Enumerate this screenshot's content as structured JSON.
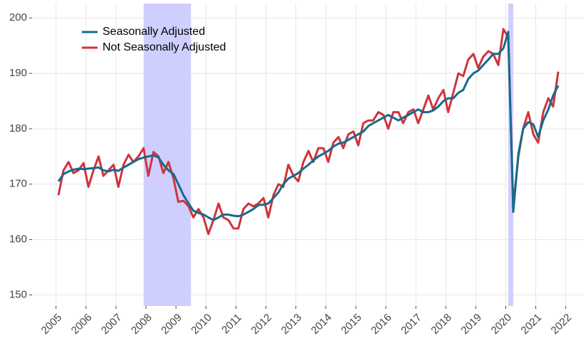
{
  "chart_data": {
    "type": "line",
    "x": [
      2005.08,
      2005.25,
      2005.42,
      2005.58,
      2005.75,
      2005.92,
      2006.08,
      2006.25,
      2006.42,
      2006.58,
      2006.75,
      2006.92,
      2007.08,
      2007.25,
      2007.42,
      2007.58,
      2007.75,
      2007.92,
      2008.08,
      2008.25,
      2008.42,
      2008.58,
      2008.75,
      2008.92,
      2009.08,
      2009.25,
      2009.42,
      2009.58,
      2009.75,
      2009.92,
      2010.08,
      2010.25,
      2010.42,
      2010.58,
      2010.75,
      2010.92,
      2011.08,
      2011.25,
      2011.42,
      2011.58,
      2011.75,
      2011.92,
      2012.08,
      2012.25,
      2012.42,
      2012.58,
      2012.75,
      2012.92,
      2013.08,
      2013.25,
      2013.42,
      2013.58,
      2013.75,
      2013.92,
      2014.08,
      2014.25,
      2014.42,
      2014.58,
      2014.75,
      2014.92,
      2015.08,
      2015.25,
      2015.42,
      2015.58,
      2015.75,
      2015.92,
      2016.08,
      2016.25,
      2016.42,
      2016.58,
      2016.75,
      2016.92,
      2017.08,
      2017.25,
      2017.42,
      2017.58,
      2017.75,
      2017.92,
      2018.08,
      2018.25,
      2018.42,
      2018.58,
      2018.75,
      2018.92,
      2019.08,
      2019.25,
      2019.42,
      2019.58,
      2019.75,
      2019.92,
      2020.08,
      2020.25,
      2020.42,
      2020.58,
      2020.75,
      2020.92,
      2021.08,
      2021.25,
      2021.42,
      2021.58,
      2021.75
    ],
    "series": [
      {
        "name": "Seasonally Adjusted",
        "color": "#156b8e",
        "values": [
          170.5,
          171.8,
          172.3,
          172.6,
          172.8,
          172.7,
          172.8,
          172.9,
          173.0,
          172.5,
          172.3,
          172.6,
          172.4,
          173.0,
          173.5,
          174.0,
          174.5,
          174.8,
          175.0,
          175.2,
          174.8,
          173.5,
          172.5,
          171.8,
          170.0,
          168.0,
          166.5,
          165.2,
          164.8,
          164.5,
          164.0,
          163.5,
          164.0,
          164.5,
          164.5,
          164.3,
          164.2,
          164.5,
          165.0,
          165.5,
          166.2,
          166.3,
          166.5,
          167.5,
          168.5,
          170.0,
          171.0,
          171.5,
          172.0,
          172.8,
          173.5,
          174.3,
          175.0,
          175.5,
          176.0,
          176.8,
          177.3,
          177.5,
          178.0,
          178.5,
          179.0,
          179.5,
          180.5,
          181.0,
          181.5,
          182.0,
          182.5,
          182.0,
          181.5,
          182.0,
          182.5,
          183.0,
          183.5,
          183.0,
          183.0,
          183.3,
          184.0,
          185.0,
          185.5,
          185.5,
          186.5,
          187.0,
          189.0,
          190.0,
          190.5,
          191.5,
          192.5,
          193.5,
          193.5,
          194.5,
          197.5,
          165.0,
          175.5,
          180.0,
          181.2,
          180.8,
          178.5,
          181.5,
          183.5,
          186.0,
          187.8
        ]
      },
      {
        "name": "Not Seasonally Adjusted",
        "color": "#d0333a",
        "values": [
          168.0,
          172.5,
          174.0,
          172.0,
          172.5,
          173.8,
          169.5,
          172.5,
          175.0,
          171.5,
          172.5,
          173.5,
          169.5,
          173.5,
          175.3,
          174.0,
          175.0,
          176.5,
          171.5,
          175.8,
          175.0,
          172.0,
          174.0,
          171.0,
          166.8,
          167.0,
          166.0,
          164.0,
          165.5,
          164.0,
          161.0,
          163.5,
          166.5,
          164.0,
          163.5,
          162.0,
          162.0,
          165.5,
          166.5,
          166.0,
          166.5,
          167.5,
          164.0,
          168.0,
          170.0,
          169.5,
          173.5,
          171.5,
          170.5,
          174.0,
          176.0,
          174.0,
          176.5,
          176.5,
          174.0,
          177.5,
          178.5,
          176.5,
          179.0,
          179.5,
          177.0,
          181.0,
          181.5,
          181.5,
          183.0,
          182.5,
          180.0,
          183.0,
          183.0,
          181.0,
          183.0,
          183.5,
          181.0,
          183.5,
          186.0,
          183.5,
          185.5,
          187.0,
          183.0,
          186.5,
          190.0,
          189.5,
          192.5,
          193.5,
          191.0,
          193.0,
          194.0,
          193.5,
          191.5,
          198.0,
          196.5,
          166.0,
          175.0,
          180.0,
          183.0,
          179.0,
          177.5,
          183.0,
          185.5,
          184.0,
          190.3
        ]
      }
    ],
    "recessions": [
      [
        2007.92,
        2009.5
      ],
      [
        2020.08,
        2020.25
      ]
    ],
    "recession_color": "#ccccff",
    "xlim": [
      2004.2,
      2022.6
    ],
    "xticks": [
      2005,
      2006,
      2007,
      2008,
      2009,
      2010,
      2011,
      2012,
      2013,
      2014,
      2015,
      2016,
      2017,
      2018,
      2019,
      2020,
      2021,
      2022
    ],
    "ylim": [
      148,
      202.6
    ],
    "yticks": [
      150,
      160,
      170,
      180,
      190,
      200
    ],
    "grid": true
  }
}
